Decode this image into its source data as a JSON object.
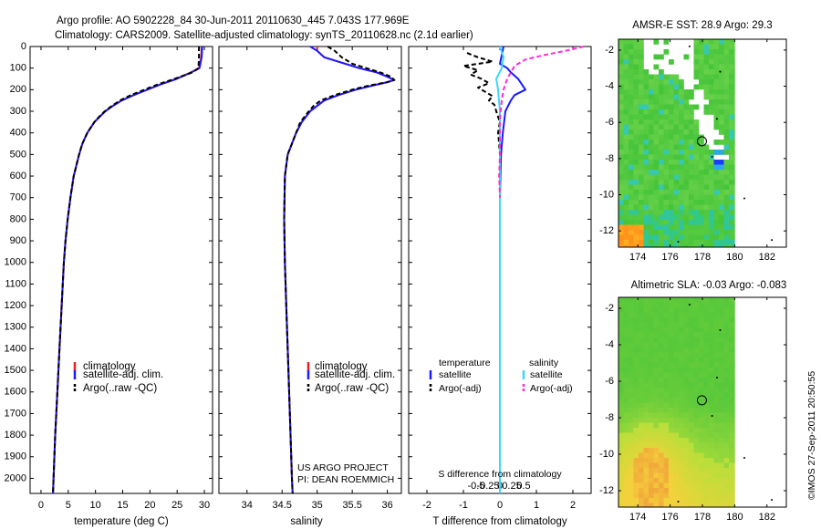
{
  "header": {
    "line1": "Argo profile: AO 5902228_84 30-Jun-2011 20110630_445 7.043S 177.969E",
    "line2": "Climatology: CARS2009. Satellite-adjusted climatology: synTS_20110628.nc (2.1d earlier)"
  },
  "side_stamp": "©IMOS 27-Sep-2011 20:50:55",
  "credits": {
    "line1": "US ARGO PROJECT",
    "line2": "PI: DEAN ROEMMICH"
  },
  "colors": {
    "climatology": "#e8202a",
    "satellite": "#1a1aff",
    "argo": "#000000",
    "sal_satellite": "#3dd6ff",
    "sal_argo": "#ff2bd6"
  },
  "chart_data": [
    {
      "type": "line",
      "id": "temperature",
      "xlabel": "temperature (deg C)",
      "xlim": [
        -2,
        31.5
      ],
      "ylim": [
        2070,
        0
      ],
      "xticks": [
        0,
        5,
        10,
        15,
        20,
        25,
        30
      ],
      "xtick_labels": [
        "0",
        "5",
        "10",
        "15",
        "20",
        "25",
        "30"
      ],
      "yticks": [
        0,
        100,
        200,
        300,
        400,
        500,
        600,
        700,
        800,
        900,
        1000,
        1100,
        1200,
        1300,
        1400,
        1500,
        1600,
        1700,
        1800,
        1900,
        2000
      ],
      "ytick_labels": [
        "0",
        "100",
        "200",
        "300",
        "400",
        "500",
        "600",
        "700",
        "800",
        "900",
        "1000",
        "1100",
        "1200",
        "1300",
        "1400",
        "1500",
        "1600",
        "1700",
        "1800",
        "1900",
        "2000"
      ],
      "legend": [
        "climatology",
        "satellite-adj. clim.",
        "Argo(..raw -QC)"
      ],
      "depth": [
        0,
        50,
        100,
        120,
        150,
        175,
        200,
        225,
        250,
        275,
        300,
        325,
        350,
        400,
        450,
        500,
        600,
        700,
        800,
        900,
        1000,
        1200,
        1400,
        1600,
        1800,
        2000,
        2070
      ],
      "series": [
        {
          "name": "climatology",
          "color": "#e8202a",
          "values": [
            29.5,
            29.4,
            29.0,
            27.5,
            24.8,
            22.0,
            19.5,
            17.0,
            14.8,
            13.2,
            11.8,
            10.8,
            9.8,
            8.5,
            7.6,
            7.0,
            6.0,
            5.4,
            4.9,
            4.5,
            4.2,
            3.8,
            3.4,
            3.0,
            2.6,
            2.3,
            2.2
          ]
        },
        {
          "name": "satellite-adj. clim.",
          "color": "#1a1aff",
          "values": [
            29.6,
            29.5,
            29.1,
            27.6,
            24.9,
            22.0,
            19.5,
            17.0,
            14.8,
            13.2,
            11.8,
            10.8,
            9.8,
            8.5,
            7.6,
            7.0,
            6.0,
            5.4,
            4.9,
            4.5,
            4.2,
            3.8,
            3.4,
            3.0,
            2.6,
            2.3,
            2.2
          ]
        },
        {
          "name": "Argo(..raw -QC)",
          "color": "#000000",
          "dashed": true,
          "values": [
            29.0,
            29.0,
            28.9,
            27.8,
            24.5,
            21.5,
            19.0,
            16.5,
            14.5,
            13.0,
            11.7,
            10.7,
            9.8,
            8.5,
            7.6,
            7.0,
            6.0,
            5.4,
            4.9,
            4.5,
            4.2,
            3.8,
            3.4,
            3.0,
            2.6,
            2.3,
            2.2
          ]
        }
      ]
    },
    {
      "type": "line",
      "id": "salinity",
      "xlabel": "salinity",
      "xlim": [
        33.6,
        36.2
      ],
      "ylim": [
        2070,
        0
      ],
      "xticks": [
        34,
        34.5,
        35,
        35.5,
        36
      ],
      "xtick_labels": [
        "34",
        "34.5",
        "35",
        "35.5",
        "36"
      ],
      "legend": [
        "climatology",
        "satellite-adj. clim.",
        "Argo(..raw -QC)"
      ],
      "depth": [
        0,
        20,
        50,
        80,
        100,
        120,
        140,
        155,
        165,
        180,
        200,
        225,
        250,
        275,
        300,
        350,
        400,
        500,
        600,
        800,
        1000,
        1200,
        1500,
        1800,
        2000,
        2070
      ],
      "series": [
        {
          "name": "climatology",
          "color": "#e8202a",
          "values": [
            35.0,
            35.0,
            35.1,
            35.4,
            35.6,
            35.85,
            36.0,
            36.1,
            36.0,
            35.8,
            35.55,
            35.3,
            35.1,
            35.0,
            34.9,
            34.78,
            34.7,
            34.58,
            34.54,
            34.53,
            34.54,
            34.56,
            34.59,
            34.62,
            34.64,
            34.65
          ]
        },
        {
          "name": "satellite-adj. clim.",
          "color": "#1a1aff",
          "values": [
            34.9,
            35.0,
            35.1,
            35.4,
            35.6,
            35.85,
            36.0,
            36.1,
            36.0,
            35.8,
            35.55,
            35.3,
            35.1,
            35.0,
            34.9,
            34.78,
            34.7,
            34.58,
            34.54,
            34.53,
            34.54,
            34.56,
            34.59,
            34.62,
            34.64,
            34.65
          ]
        },
        {
          "name": "Argo(..raw -QC)",
          "color": "#000000",
          "dashed": true,
          "values": [
            35.15,
            35.25,
            35.35,
            35.5,
            35.7,
            35.9,
            36.05,
            36.1,
            36.0,
            35.75,
            35.5,
            35.25,
            35.05,
            34.95,
            34.88,
            34.76,
            34.7,
            34.58,
            34.54,
            34.53,
            34.54,
            34.56,
            34.59,
            34.62,
            34.64,
            34.65
          ]
        }
      ]
    },
    {
      "type": "line",
      "id": "difference",
      "xlabel": "T difference from climatology",
      "xlabel_top": "S difference from climatology",
      "xlim": [
        -2.5,
        2.5
      ],
      "ylim": [
        2070,
        0
      ],
      "xticks": [
        -2,
        -1,
        0,
        1,
        2
      ],
      "xtick_labels": [
        "-2",
        "-1",
        "0",
        "1",
        "2"
      ],
      "s_ticks": [
        -0.5,
        -0.25,
        0,
        0.25,
        0.5
      ],
      "s_tick_labels": [
        "-0.5",
        "-0.25",
        "0",
        "0.25",
        "0.5"
      ],
      "legend_headers": [
        "temperature",
        "salinity"
      ],
      "legend": [
        "satellite",
        "Argo(-adj)",
        "satellite",
        "Argo(-adj)"
      ],
      "series": [
        {
          "name": "temperature satellite",
          "color": "#1a1aff",
          "depth": [
            0,
            40,
            80,
            100,
            120,
            150,
            175,
            200,
            225,
            250,
            300,
            400,
            500,
            700,
            1000,
            1500,
            2000,
            2070
          ],
          "values": [
            0.1,
            0.05,
            0.0,
            0.2,
            0.3,
            0.5,
            0.6,
            0.7,
            0.4,
            0.3,
            0.15,
            0.08,
            0.03,
            0.0,
            0.0,
            0.0,
            0.0,
            0.0
          ]
        },
        {
          "name": "temperature Argo(-adj)",
          "color": "#000000",
          "dashed": true,
          "depth": [
            30,
            50,
            70,
            90,
            110,
            130,
            150,
            170,
            190,
            210,
            230,
            250,
            270,
            300,
            350,
            400,
            450,
            500
          ],
          "values": [
            -0.9,
            -0.6,
            -0.2,
            -1.0,
            -0.6,
            -0.8,
            -0.5,
            -0.3,
            -0.6,
            -0.4,
            -0.2,
            -0.3,
            -0.15,
            -0.1,
            0.0,
            -0.05,
            -0.02,
            0.0
          ]
        },
        {
          "name": "salinity satellite",
          "color": "#3dd6ff",
          "depth": [
            0,
            50,
            100,
            150,
            200,
            300,
            400,
            500,
            700,
            1000,
            1100,
            1200,
            1500,
            2000,
            2070
          ],
          "values": [
            0.0,
            0.1,
            0.05,
            -0.1,
            -0.05,
            0.0,
            0.0,
            0.0,
            0.0,
            0.0,
            0.0,
            0.0,
            0.0,
            0.0,
            0.0
          ]
        },
        {
          "name": "salinity Argo(-adj)",
          "color": "#ff2bd6",
          "dashed": true,
          "depth": [
            0,
            20,
            40,
            60,
            90,
            150,
            200,
            250,
            300,
            350,
            400,
            500,
            600,
            700
          ],
          "values": [
            2.3,
            1.8,
            1.2,
            0.7,
            0.4,
            0.2,
            0.1,
            0.05,
            0.02,
            0.0,
            0.0,
            0.0,
            -0.02,
            0.0
          ]
        }
      ]
    },
    {
      "type": "heatmap",
      "id": "sst_map",
      "title": "AMSR-E SST: 28.9 Argo: 29.3",
      "xlim": [
        172.8,
        183.2
      ],
      "ylim": [
        -12.9,
        -1.4
      ],
      "xticks": [
        174,
        176,
        178,
        180,
        182
      ],
      "xtick_labels": [
        "174",
        "176",
        "178",
        "180",
        "182"
      ],
      "yticks": [
        -2,
        -4,
        -6,
        -8,
        -10,
        -12
      ],
      "ytick_labels": [
        "-2",
        "-4",
        "-6",
        "-8",
        "-10",
        "-12"
      ],
      "marker": {
        "lon": 177.969,
        "lat": -7.043
      },
      "data_lon_range": [
        172.8,
        180.0
      ]
    },
    {
      "type": "heatmap",
      "id": "sla_map",
      "title": "Altimetric SLA: -0.03 Argo: -0.083",
      "xlim": [
        172.8,
        183.2
      ],
      "ylim": [
        -12.9,
        -1.4
      ],
      "xticks": [
        174,
        176,
        178,
        180,
        182
      ],
      "xtick_labels": [
        "174",
        "176",
        "178",
        "180",
        "182"
      ],
      "yticks": [
        -2,
        -4,
        -6,
        -8,
        -10,
        -12
      ],
      "ytick_labels": [
        "-2",
        "-4",
        "-6",
        "-8",
        "-10",
        "-12"
      ],
      "marker": {
        "lon": 177.969,
        "lat": -7.043
      },
      "data_lon_range": [
        172.8,
        180.0
      ]
    }
  ]
}
